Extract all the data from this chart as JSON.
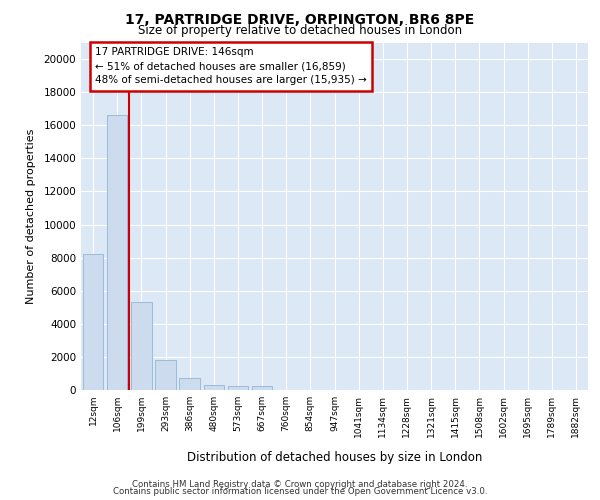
{
  "title1": "17, PARTRIDGE DRIVE, ORPINGTON, BR6 8PE",
  "title2": "Size of property relative to detached houses in London",
  "xlabel": "Distribution of detached houses by size in London",
  "ylabel": "Number of detached properties",
  "categories": [
    "12sqm",
    "106sqm",
    "199sqm",
    "293sqm",
    "386sqm",
    "480sqm",
    "573sqm",
    "667sqm",
    "760sqm",
    "854sqm",
    "947sqm",
    "1041sqm",
    "1134sqm",
    "1228sqm",
    "1321sqm",
    "1415sqm",
    "1508sqm",
    "1602sqm",
    "1695sqm",
    "1789sqm",
    "1882sqm"
  ],
  "values": [
    8200,
    16600,
    5300,
    1800,
    750,
    300,
    250,
    250,
    0,
    0,
    0,
    0,
    0,
    0,
    0,
    0,
    0,
    0,
    0,
    0,
    0
  ],
  "bar_color": "#ccdcee",
  "bar_edge_color": "#9bbbd8",
  "vline_x": 1.5,
  "vline_color": "#cc0000",
  "annotation_box_text": "17 PARTRIDGE DRIVE: 146sqm\n← 51% of detached houses are smaller (16,859)\n48% of semi-detached houses are larger (15,935) →",
  "box_color": "#ffffff",
  "box_edge_color": "#cc0000",
  "ylim": [
    0,
    21000
  ],
  "yticks": [
    0,
    2000,
    4000,
    6000,
    8000,
    10000,
    12000,
    14000,
    16000,
    18000,
    20000
  ],
  "footer1": "Contains HM Land Registry data © Crown copyright and database right 2024.",
  "footer2": "Contains public sector information licensed under the Open Government Licence v3.0.",
  "fig_bg_color": "#ffffff",
  "plot_bg_color": "#dce8f5"
}
